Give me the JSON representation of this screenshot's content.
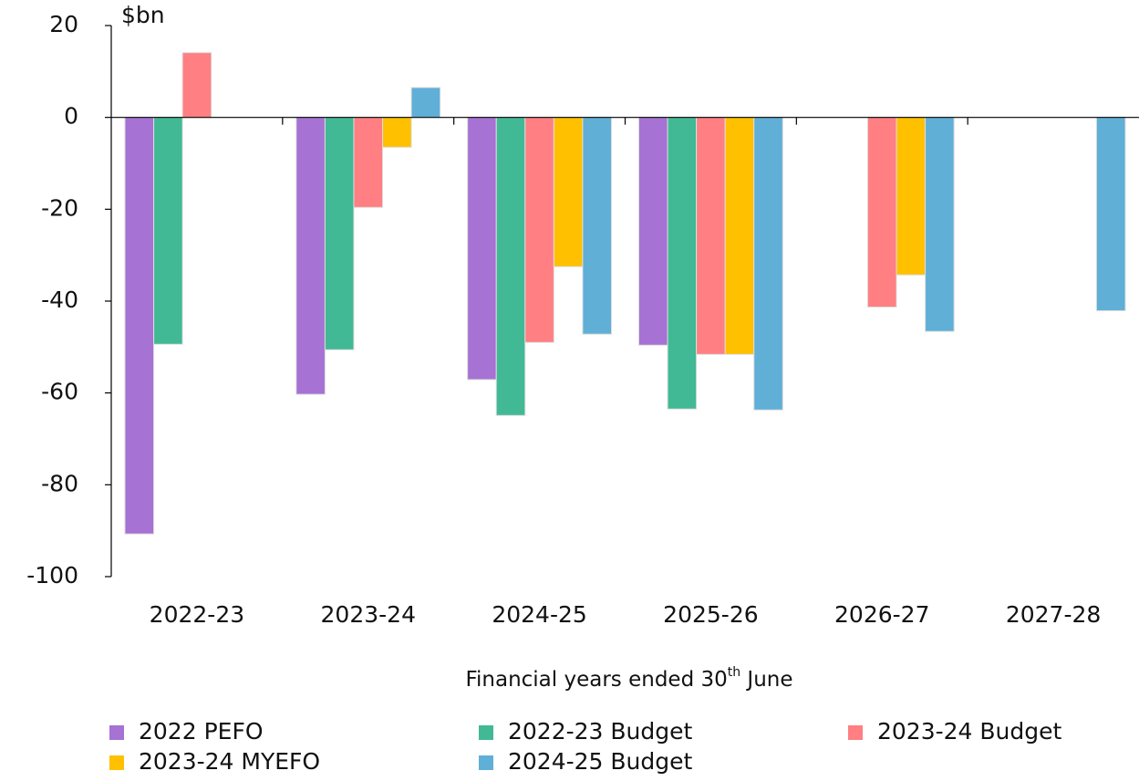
{
  "chart_data": {
    "type": "bar",
    "y_label": "$bn",
    "x_label": {
      "text": "Financial years ended 30",
      "sup": "th",
      "rest": " June"
    },
    "categories": [
      "2022-23",
      "2023-24",
      "2024-25",
      "2025-26",
      "2026-27",
      "2027-28"
    ],
    "series": [
      {
        "name": "2022 PEFO",
        "color": "#a672d3",
        "values": [
          -90.7,
          -60.3,
          -57.1,
          -49.6,
          null,
          null
        ]
      },
      {
        "name": "2022-23 Budget",
        "color": "#41b995",
        "values": [
          -49.4,
          -50.6,
          -64.9,
          -63.5,
          null,
          null
        ]
      },
      {
        "name": "2023-24 Budget",
        "color": "#ff7f82",
        "values": [
          14.1,
          -19.6,
          -49.0,
          -51.6,
          -41.3,
          null
        ]
      },
      {
        "name": "2023-24 MYEFO",
        "color": "#ffc000",
        "values": [
          null,
          -6.5,
          -32.5,
          -51.6,
          -34.3,
          null
        ]
      },
      {
        "name": "2024-25 Budget",
        "color": "#5fafd7",
        "values": [
          null,
          6.5,
          -47.2,
          -63.7,
          -46.6,
          -42.1
        ]
      }
    ],
    "ylim": [
      -100,
      20
    ],
    "yticks": [
      -100,
      -80,
      -60,
      -40,
      -20,
      0,
      20
    ]
  }
}
